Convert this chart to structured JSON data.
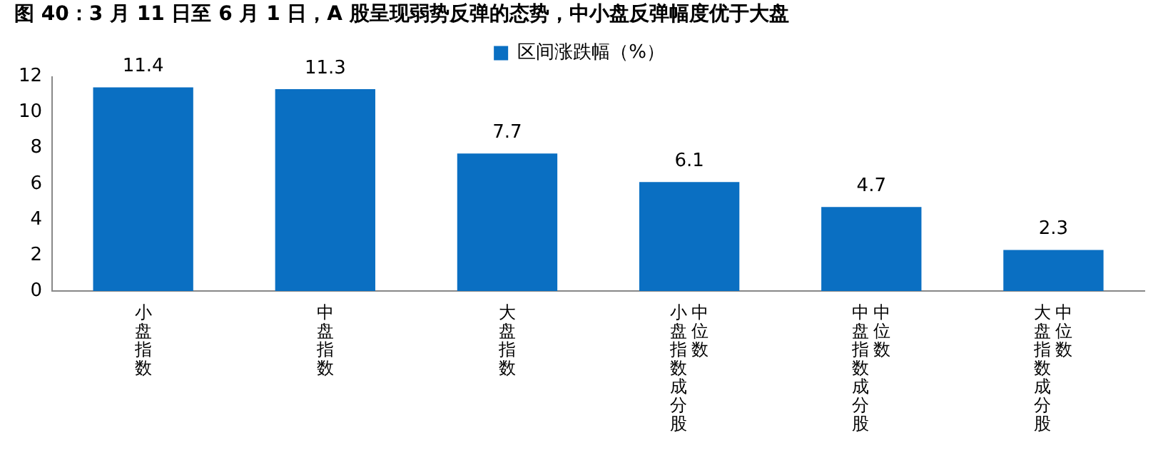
{
  "chart_data": {
    "type": "bar",
    "title": "图 40：3 月 11 日至 6 月 1 日，A 股呈现弱势反弹的态势，中小盘反弹幅度优于大盘",
    "categories": [
      "小盘指数",
      "中盘指数",
      "大盘指数",
      "小盘指数成分股中位数",
      "中盘指数成分股中位数",
      "大盘指数成分股中位数"
    ],
    "series": [
      {
        "name": "区间涨跌幅（%）",
        "color": "#0a6fc2",
        "values": [
          11.4,
          11.3,
          7.7,
          6.1,
          4.7,
          2.3
        ]
      }
    ],
    "ylim": [
      0,
      12
    ],
    "yticks": [
      0,
      2,
      4,
      6,
      8,
      10,
      12
    ],
    "grid": false,
    "legend": "top",
    "data_labels": true
  }
}
